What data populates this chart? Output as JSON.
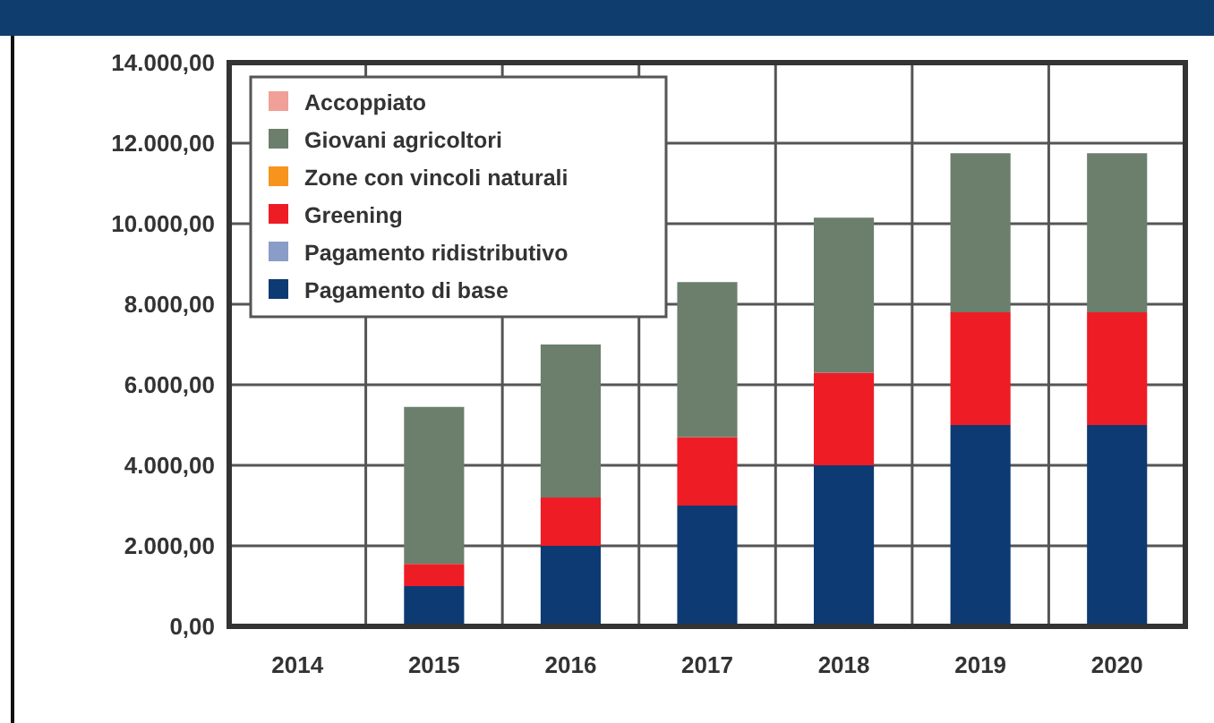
{
  "chart_data": {
    "type": "bar",
    "stacked": true,
    "categories": [
      "2014",
      "2015",
      "2016",
      "2017",
      "2018",
      "2019",
      "2020"
    ],
    "series": [
      {
        "name": "Pagamento di base",
        "color": "#0d3a73",
        "values": [
          0,
          1000,
          2000,
          3000,
          4000,
          5000,
          5000
        ]
      },
      {
        "name": "Pagamento ridistributivo",
        "color": "#8a9cc8",
        "values": [
          0,
          0,
          0,
          0,
          0,
          0,
          0
        ]
      },
      {
        "name": "Greening",
        "color": "#ee1c25",
        "values": [
          0,
          550,
          1200,
          1700,
          2300,
          2800,
          2800
        ]
      },
      {
        "name": "Zone con vincoli naturali",
        "color": "#f7941d",
        "values": [
          0,
          0,
          0,
          0,
          0,
          0,
          0
        ]
      },
      {
        "name": "Giovani agricoltori",
        "color": "#6b7f6c",
        "values": [
          0,
          3900,
          3800,
          3850,
          3850,
          3950,
          3950
        ]
      },
      {
        "name": "Accoppiato",
        "color": "#f0a096",
        "values": [
          0,
          0,
          0,
          0,
          0,
          0,
          0
        ]
      }
    ],
    "ylim": [
      0,
      14000
    ],
    "yticks": [
      {
        "value": 0,
        "label": "0,00"
      },
      {
        "value": 2000,
        "label": "2.000,00"
      },
      {
        "value": 4000,
        "label": "4.000,00"
      },
      {
        "value": 6000,
        "label": "6.000,00"
      },
      {
        "value": 8000,
        "label": "8.000,00"
      },
      {
        "value": 10000,
        "label": "10.000,00"
      },
      {
        "value": 12000,
        "label": "12.000,00"
      },
      {
        "value": 14000,
        "label": "14.000,00"
      }
    ],
    "grid": true,
    "legend": "top left"
  }
}
